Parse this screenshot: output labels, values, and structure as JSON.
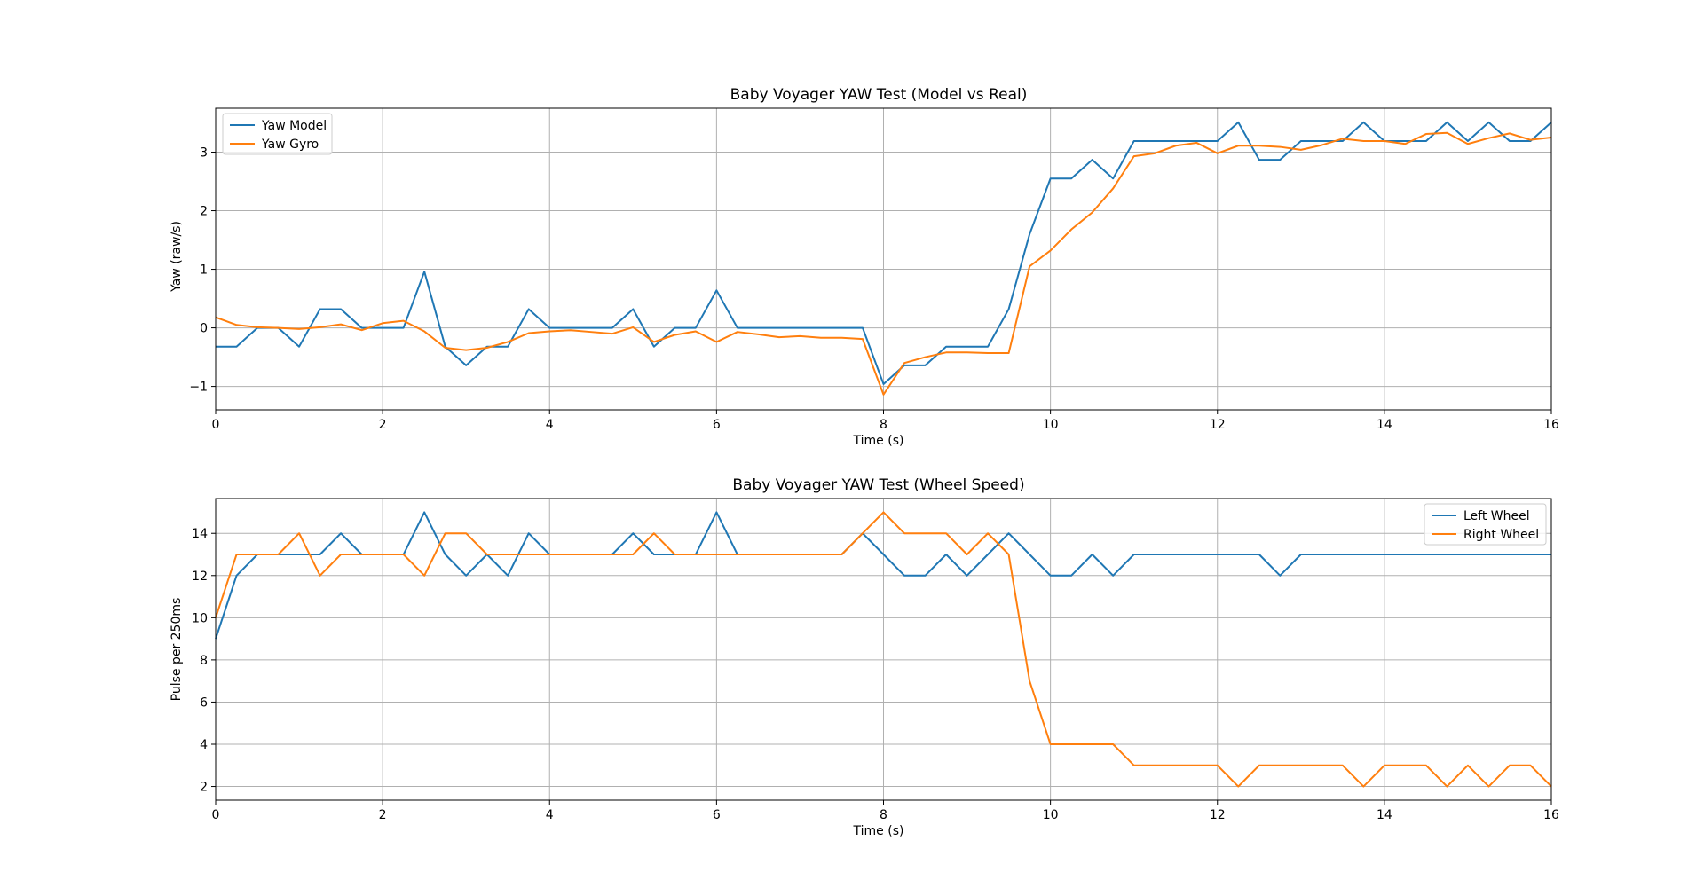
{
  "chart_data": [
    {
      "type": "line",
      "title": "Baby Voyager YAW Test (Model vs Real)",
      "xlabel": "Time (s)",
      "ylabel": "Yaw (raw/s)",
      "xlim": [
        0,
        16
      ],
      "ylim": [
        -1.4,
        3.75
      ],
      "grid": true,
      "legend_loc": "upper-left",
      "xticks": [
        0,
        2,
        4,
        6,
        8,
        10,
        12,
        14,
        16
      ],
      "xtick_labels": [
        "0",
        "2",
        "4",
        "6",
        "8",
        "10",
        "12",
        "14",
        "16"
      ],
      "yticks": [
        -1,
        0,
        1,
        2,
        3
      ],
      "ytick_labels": [
        "−1",
        "0",
        "1",
        "2",
        "3"
      ],
      "x": [
        0,
        0.25,
        0.5,
        0.75,
        1,
        1.25,
        1.5,
        1.75,
        2,
        2.25,
        2.5,
        2.75,
        3,
        3.25,
        3.5,
        3.75,
        4,
        4.25,
        4.5,
        4.75,
        5,
        5.25,
        5.5,
        5.75,
        6,
        6.25,
        6.5,
        6.75,
        7,
        7.25,
        7.5,
        7.75,
        8,
        8.25,
        8.5,
        8.75,
        9,
        9.25,
        9.5,
        9.75,
        10,
        10.25,
        10.5,
        10.75,
        11,
        11.25,
        11.5,
        11.75,
        12,
        12.25,
        12.5,
        12.75,
        13,
        13.25,
        13.5,
        13.75,
        14,
        14.25,
        14.5,
        14.75,
        15,
        15.25,
        15.5,
        15.75,
        16
      ],
      "series": [
        {
          "name": "Yaw Model",
          "color": "#1f77b4",
          "values": [
            -0.32,
            -0.32,
            0,
            0,
            -0.32,
            0.32,
            0.32,
            0,
            0,
            0,
            0.96,
            -0.32,
            -0.64,
            -0.32,
            -0.32,
            0.32,
            0,
            0,
            0,
            0,
            0.32,
            -0.32,
            0,
            0,
            0.64,
            0,
            0,
            0,
            0,
            0,
            0,
            0,
            -0.96,
            -0.64,
            -0.64,
            -0.32,
            -0.32,
            -0.32,
            0.32,
            1.6,
            2.55,
            2.55,
            2.87,
            2.55,
            3.19,
            3.19,
            3.19,
            3.19,
            3.19,
            3.51,
            2.87,
            2.87,
            3.19,
            3.19,
            3.19,
            3.51,
            3.19,
            3.19,
            3.19,
            3.51,
            3.19,
            3.51,
            3.19,
            3.19,
            3.51
          ]
        },
        {
          "name": "Yaw Gyro",
          "color": "#ff7f0e",
          "values": [
            0.18,
            0.05,
            0.01,
            0,
            -0.02,
            0.01,
            0.06,
            -0.04,
            0.08,
            0.12,
            -0.06,
            -0.34,
            -0.38,
            -0.34,
            -0.24,
            -0.09,
            -0.06,
            -0.04,
            -0.07,
            -0.1,
            0.01,
            -0.24,
            -0.12,
            -0.06,
            -0.24,
            -0.07,
            -0.11,
            -0.16,
            -0.14,
            -0.17,
            -0.17,
            -0.19,
            -1.14,
            -0.6,
            -0.5,
            -0.42,
            -0.42,
            -0.43,
            -0.43,
            1.05,
            1.32,
            1.68,
            1.97,
            2.38,
            2.93,
            2.98,
            3.11,
            3.16,
            2.98,
            3.11,
            3.11,
            3.09,
            3.04,
            3.12,
            3.23,
            3.19,
            3.19,
            3.14,
            3.31,
            3.33,
            3.14,
            3.24,
            3.32,
            3.21,
            3.25
          ]
        }
      ]
    },
    {
      "type": "line",
      "title": "Baby Voyager YAW Test (Wheel Speed)",
      "xlabel": "Time (s)",
      "ylabel": "Pulse per 250ms",
      "xlim": [
        0,
        16
      ],
      "ylim": [
        1.35,
        15.65
      ],
      "grid": true,
      "legend_loc": "upper-right",
      "xticks": [
        0,
        2,
        4,
        6,
        8,
        10,
        12,
        14,
        16
      ],
      "xtick_labels": [
        "0",
        "2",
        "4",
        "6",
        "8",
        "10",
        "12",
        "14",
        "16"
      ],
      "yticks": [
        2,
        4,
        6,
        8,
        10,
        12,
        14
      ],
      "ytick_labels": [
        "2",
        "4",
        "6",
        "8",
        "10",
        "12",
        "14"
      ],
      "x": [
        0,
        0.25,
        0.5,
        0.75,
        1,
        1.25,
        1.5,
        1.75,
        2,
        2.25,
        2.5,
        2.75,
        3,
        3.25,
        3.5,
        3.75,
        4,
        4.25,
        4.5,
        4.75,
        5,
        5.25,
        5.5,
        5.75,
        6,
        6.25,
        6.5,
        6.75,
        7,
        7.25,
        7.5,
        7.75,
        8,
        8.25,
        8.5,
        8.75,
        9,
        9.25,
        9.5,
        9.75,
        10,
        10.25,
        10.5,
        10.75,
        11,
        11.25,
        11.5,
        11.75,
        12,
        12.25,
        12.5,
        12.75,
        13,
        13.25,
        13.5,
        13.75,
        14,
        14.25,
        14.5,
        14.75,
        15,
        15.25,
        15.5,
        15.75,
        16
      ],
      "series": [
        {
          "name": "Left Wheel",
          "color": "#1f77b4",
          "values": [
            9,
            12,
            13,
            13,
            13,
            13,
            14,
            13,
            13,
            13,
            15,
            13,
            12,
            13,
            12,
            14,
            13,
            13,
            13,
            13,
            14,
            13,
            13,
            13,
            15,
            13,
            13,
            13,
            13,
            13,
            13,
            14,
            13,
            12,
            12,
            13,
            12,
            13,
            14,
            13,
            12,
            12,
            13,
            12,
            13,
            13,
            13,
            13,
            13,
            13,
            13,
            12,
            13,
            13,
            13,
            13,
            13,
            13,
            13,
            13,
            13,
            13,
            13,
            13,
            13
          ]
        },
        {
          "name": "Right Wheel",
          "color": "#ff7f0e",
          "values": [
            10,
            13,
            13,
            13,
            14,
            12,
            13,
            13,
            13,
            13,
            12,
            14,
            14,
            13,
            13,
            13,
            13,
            13,
            13,
            13,
            13,
            14,
            13,
            13,
            13,
            13,
            13,
            13,
            13,
            13,
            13,
            14,
            15,
            14,
            14,
            14,
            13,
            14,
            13,
            7,
            4,
            4,
            4,
            4,
            3,
            3,
            3,
            3,
            3,
            2,
            3,
            3,
            3,
            3,
            3,
            2,
            3,
            3,
            3,
            2,
            3,
            2,
            3,
            3,
            2
          ]
        }
      ]
    }
  ]
}
